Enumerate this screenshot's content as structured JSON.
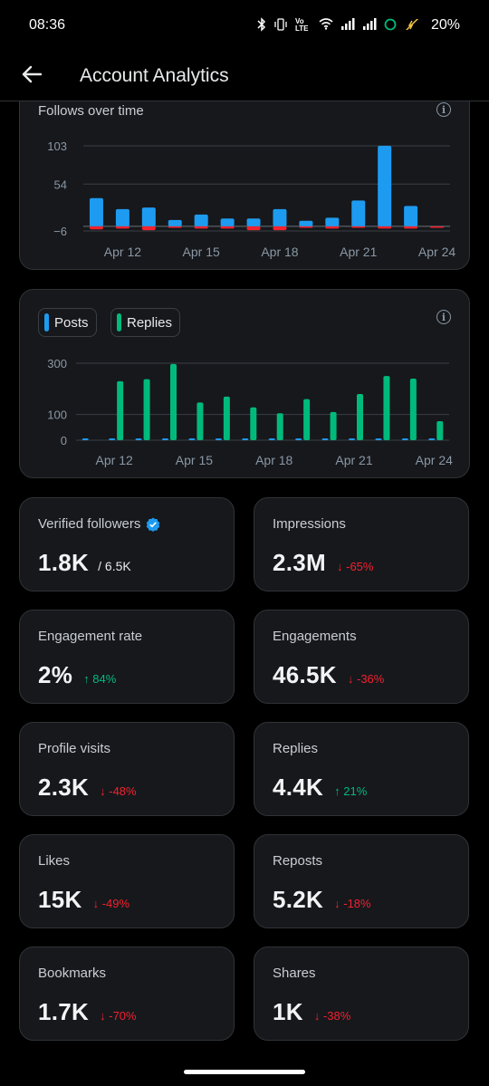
{
  "status_bar": {
    "time": "08:36",
    "icons": [
      "bluetooth-icon",
      "vibrate-icon",
      "volte-icon",
      "wifi-icon",
      "signal-icon",
      "signal-icon",
      "data-saver-icon",
      "battery-charging-icon"
    ],
    "volte_label": "Vo LTE",
    "battery": "20%"
  },
  "header": {
    "title": "Account Analytics",
    "back_icon": "arrow-left-icon"
  },
  "follows_chart": {
    "title": "Follows over time",
    "info_icon": "info-icon",
    "chart_data": {
      "type": "bar",
      "title": "Follows over time",
      "ylim": [
        -6,
        103
      ],
      "y_ticks": [
        "103",
        "54",
        "−6"
      ],
      "x_ticks": [
        "Apr 12",
        "Apr 15",
        "Apr 18",
        "Apr 21",
        "Apr 24"
      ],
      "categories": [
        "Apr 11",
        "Apr 12",
        "Apr 13",
        "Apr 14",
        "Apr 15",
        "Apr 16",
        "Apr 17",
        "Apr 18",
        "Apr 19",
        "Apr 20",
        "Apr 21",
        "Apr 22",
        "Apr 23",
        "Apr 24"
      ],
      "series": [
        {
          "color": "#1d9bf0",
          "values": [
            36,
            22,
            24,
            8,
            15,
            10,
            10,
            22,
            7,
            11,
            33,
            103,
            26,
            0
          ]
        },
        {
          "color": "#f4212e",
          "values": [
            -4,
            -3,
            -5,
            -2,
            -3,
            -3,
            -5,
            -5,
            -2,
            -3,
            -2,
            -3,
            -3,
            -2
          ]
        }
      ]
    }
  },
  "posts_replies_chart": {
    "info_icon": "info-icon",
    "legend": [
      {
        "label": "Posts",
        "color": "#1d9bf0"
      },
      {
        "label": "Replies",
        "color": "#00ba7c"
      }
    ],
    "chart_data": {
      "type": "bar",
      "ylim": [
        0,
        300
      ],
      "y_ticks": [
        "300",
        "100",
        "0"
      ],
      "x_ticks": [
        "Apr 12",
        "Apr 15",
        "Apr 18",
        "Apr 21",
        "Apr 24"
      ],
      "categories": [
        "Apr 11",
        "Apr 12",
        "Apr 13",
        "Apr 14",
        "Apr 15",
        "Apr 16",
        "Apr 17",
        "Apr 18",
        "Apr 19",
        "Apr 20",
        "Apr 21",
        "Apr 22",
        "Apr 23",
        "Apr 24"
      ],
      "series": [
        {
          "name": "Posts",
          "color": "#1d9bf0",
          "values": [
            6,
            4,
            4,
            4,
            4,
            6,
            4,
            4,
            4,
            4,
            4,
            4,
            4,
            2
          ]
        },
        {
          "name": "Replies",
          "color": "#00ba7c",
          "values": [
            0,
            230,
            238,
            297,
            147,
            170,
            128,
            105,
            160,
            110,
            180,
            250,
            240,
            74
          ]
        }
      ]
    }
  },
  "stats": [
    {
      "label": "Verified followers",
      "value": "1.8K",
      "sub": "/ 6.5K",
      "change": "",
      "direction": "",
      "verified_icon": "verified-badge-icon"
    },
    {
      "label": "Impressions",
      "value": "2.3M",
      "sub": "",
      "change": "↓ -65%",
      "direction": "down"
    },
    {
      "label": "Engagement rate",
      "value": "2%",
      "sub": "",
      "change": "↑ 84%",
      "direction": "up"
    },
    {
      "label": "Engagements",
      "value": "46.5K",
      "sub": "",
      "change": "↓ -36%",
      "direction": "down"
    },
    {
      "label": "Profile visits",
      "value": "2.3K",
      "sub": "",
      "change": "↓ -48%",
      "direction": "down"
    },
    {
      "label": "Replies",
      "value": "4.4K",
      "sub": "",
      "change": "↑ 21%",
      "direction": "up"
    },
    {
      "label": "Likes",
      "value": "15K",
      "sub": "",
      "change": "↓ -49%",
      "direction": "down"
    },
    {
      "label": "Reposts",
      "value": "5.2K",
      "sub": "",
      "change": "↓ -18%",
      "direction": "down"
    },
    {
      "label": "Bookmarks",
      "value": "1.7K",
      "sub": "",
      "change": "↓ -70%",
      "direction": "down"
    },
    {
      "label": "Shares",
      "value": "1K",
      "sub": "",
      "change": "↓ -38%",
      "direction": "down"
    }
  ]
}
